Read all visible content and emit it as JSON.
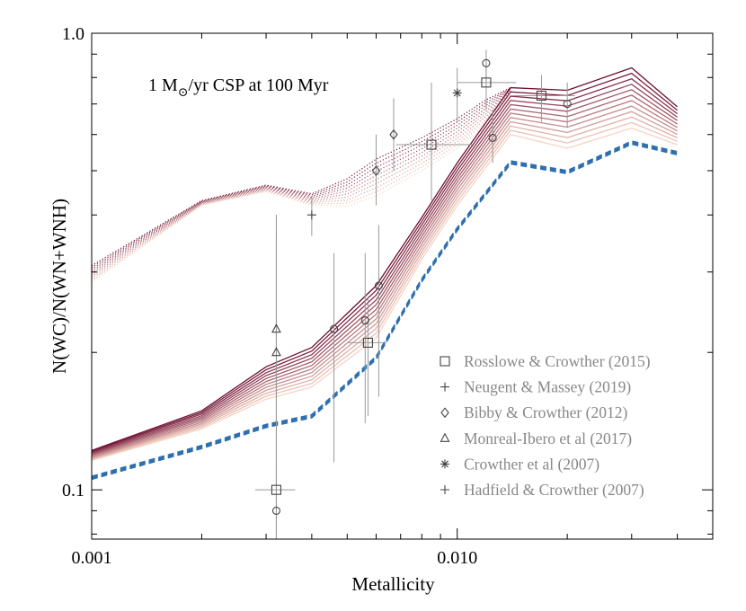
{
  "chart_data": {
    "type": "line",
    "title": "",
    "annotation": {
      "prefix": "1 M",
      "subscript_symbol": "⊙",
      "suffix": "/yr CSP at 100 Myr"
    },
    "xlabel": "Metallicity",
    "ylabel": "N(WC)/N(WN+WNH)",
    "xscale": "log",
    "yscale": "log",
    "xlim": [
      0.001,
      0.05
    ],
    "ylim": [
      0.078,
      1.0
    ],
    "x_ticks": [
      {
        "value": 0.001,
        "label": "0.001"
      },
      {
        "value": 0.01,
        "label": "0.010"
      }
    ],
    "y_ticks": [
      {
        "value": 0.1,
        "label": "0.1"
      },
      {
        "value": 1.0,
        "label": "1.0"
      }
    ],
    "grid": false,
    "colors": {
      "dark_line": "#6e0f34",
      "light_line": "#f7d3c2",
      "dashed_line": "#2d6fae",
      "data_points": "#444444",
      "error_bars": "#999999",
      "legend_text": "#888888"
    },
    "model_band": {
      "x": [
        0.001,
        0.002,
        0.003,
        0.004,
        0.006,
        0.008,
        0.01,
        0.014,
        0.02,
        0.03,
        0.04
      ],
      "top_curve": [
        0.122,
        0.149,
        0.186,
        0.205,
        0.28,
        0.395,
        0.52,
        0.76,
        0.75,
        0.84,
        0.69
      ],
      "bottom_solid": [
        0.116,
        0.136,
        0.158,
        0.168,
        0.215,
        0.32,
        0.42,
        0.6,
        0.56,
        0.62,
        0.57
      ],
      "dashed_curve": [
        0.107,
        0.125,
        0.139,
        0.146,
        0.196,
        0.29,
        0.375,
        0.525,
        0.5,
        0.58,
        0.55
      ],
      "solid_count": 12,
      "dashed_count": 3,
      "dashed_spread": 0.007
    },
    "dotted_band": {
      "x": [
        0.001,
        0.002,
        0.003,
        0.004,
        0.005,
        0.006,
        0.008,
        0.01,
        0.012,
        0.014
      ],
      "top_curve": [
        0.31,
        0.43,
        0.465,
        0.445,
        0.48,
        0.53,
        0.59,
        0.65,
        0.715,
        0.76
      ],
      "bottom_curve": [
        0.285,
        0.42,
        0.45,
        0.42,
        0.418,
        0.44,
        0.5,
        0.56,
        0.63,
        0.74
      ],
      "count": 10
    },
    "series": [
      {
        "name": "Rosslowe & Crowther (2015)",
        "marker": "square",
        "points": [
          {
            "x": 0.0032,
            "y": 0.1,
            "xerr": [
              0.0028,
              0.0036
            ],
            "yerr": [
              0.088,
              0.115
            ]
          },
          {
            "x": 0.0057,
            "y": 0.21,
            "xerr": [
              0.005,
              0.0064
            ],
            "yerr": [
              0.145,
              0.265
            ]
          },
          {
            "x": 0.0085,
            "y": 0.57,
            "xerr": [
              0.0068,
              0.011
            ],
            "yerr": [
              0.43,
              0.78
            ]
          },
          {
            "x": 0.012,
            "y": 0.78,
            "xerr": [
              0.01,
              0.0145
            ],
            "yerr": [
              0.68,
              0.86
            ]
          },
          {
            "x": 0.017,
            "y": 0.73,
            "xerr": [
              0.014,
              0.021
            ],
            "yerr": [
              0.64,
              0.81
            ]
          }
        ]
      },
      {
        "name": "Neugent & Massey (2019)",
        "marker": "plus",
        "points": [
          {
            "x": 0.004,
            "y": 0.4,
            "xerr": null,
            "yerr": [
              0.36,
              0.44
            ]
          }
        ]
      },
      {
        "name": "Bibby & Crowther (2012)",
        "marker": "diamond",
        "points": [
          {
            "x": 0.006,
            "y": 0.5,
            "xerr": null,
            "yerr": [
              0.42,
              0.6
            ]
          },
          {
            "x": 0.0067,
            "y": 0.6,
            "xerr": null,
            "yerr": [
              0.5,
              0.72
            ]
          }
        ]
      },
      {
        "name": "Monreal-Ibero et al (2017)",
        "marker": "triangle",
        "points": [
          {
            "x": 0.0032,
            "y": 0.225,
            "xerr": null,
            "yerr": [
              0.078,
              0.4
            ]
          },
          {
            "x": 0.0032,
            "y": 0.2,
            "xerr": null,
            "yerr": [
              0.078,
              0.36
            ]
          }
        ]
      },
      {
        "name": "Crowther et al (2007)",
        "marker": "asterisk",
        "points": [
          {
            "x": 0.01,
            "y": 0.74,
            "xerr": null,
            "yerr": [
              0.64,
              0.84
            ]
          }
        ]
      },
      {
        "name": "Hadfield & Crowther (2007)",
        "marker": "plus",
        "points": []
      },
      {
        "name": "",
        "marker": "circle",
        "points": [
          {
            "x": 0.0032,
            "y": 0.09,
            "xerr": null,
            "yerr": [
              0.078,
              0.4
            ]
          },
          {
            "x": 0.0046,
            "y": 0.225,
            "xerr": null,
            "yerr": [
              0.115,
              0.33
            ]
          },
          {
            "x": 0.0056,
            "y": 0.235,
            "xerr": null,
            "yerr": [
              0.14,
              0.33
            ]
          },
          {
            "x": 0.0061,
            "y": 0.28,
            "xerr": null,
            "yerr": [
              0.16,
              0.38
            ]
          },
          {
            "x": 0.012,
            "y": 0.86,
            "xerr": null,
            "yerr": [
              0.78,
              0.92
            ]
          },
          {
            "x": 0.0125,
            "y": 0.59,
            "xerr": null,
            "yerr": [
              0.52,
              0.68
            ]
          },
          {
            "x": 0.02,
            "y": 0.7,
            "xerr": null,
            "yerr": [
              0.62,
              0.78
            ]
          }
        ]
      }
    ]
  }
}
